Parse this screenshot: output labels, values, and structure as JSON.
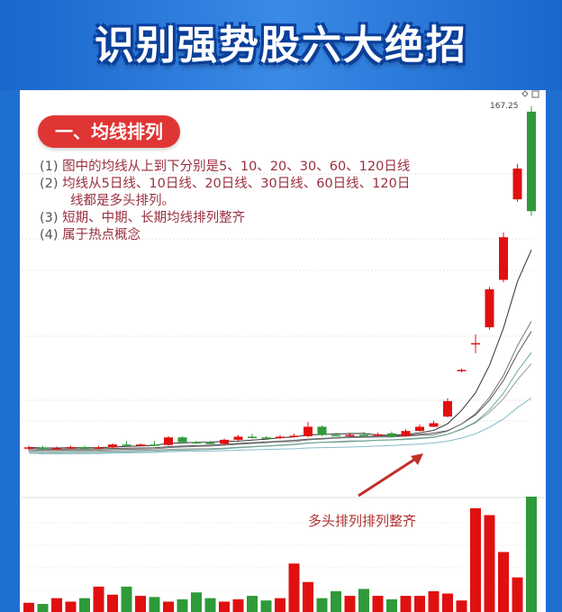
{
  "title": "识别强势股六大绝招",
  "section_label": "一、均线排列",
  "notes": [
    {
      "num": "(1)",
      "text": "图中的均线从上到下分别是5、10、20、30、60、120日线"
    },
    {
      "num": "(2)",
      "text": "均线从5日线、10日线、20日线、30日线、60日线、120日",
      "cont": "线都是多头排列。"
    },
    {
      "num": "(3)",
      "text": "短期、中期、长期均线排列整齐"
    },
    {
      "num": "(4)",
      "text": "属于热点概念"
    }
  ],
  "annotation": "多头排列排列整齐",
  "colors": {
    "up": "#e01010",
    "down": "#2e9a3a",
    "header": "#1f6fd0",
    "pill": "#e03535"
  },
  "chart_data": {
    "type": "candlestick",
    "price_label": "167.25",
    "ma_periods": [
      5,
      10,
      20,
      30,
      60,
      120
    ],
    "candles": [
      [
        23,
        23.3,
        24,
        22
      ],
      [
        23.3,
        22.8,
        24,
        22
      ],
      [
        22.8,
        23,
        23.6,
        22.3
      ],
      [
        23,
        23.4,
        24,
        22.5
      ],
      [
        23.4,
        23.1,
        24,
        22.6
      ],
      [
        23.1,
        23.3,
        24,
        22.8
      ],
      [
        23.3,
        24.5,
        25,
        23
      ],
      [
        24.5,
        24.2,
        26,
        23.8
      ],
      [
        24.2,
        24.5,
        25,
        23.8
      ],
      [
        24.5,
        24.3,
        26,
        23.8
      ],
      [
        24.3,
        27.5,
        28,
        24
      ],
      [
        27.5,
        25.5,
        28,
        25
      ],
      [
        25.5,
        25.2,
        26,
        24.8
      ],
      [
        25.2,
        24.8,
        26,
        24.5
      ],
      [
        24.8,
        26.5,
        27,
        24.5
      ],
      [
        26.5,
        27.8,
        28.5,
        26
      ],
      [
        27.8,
        27.5,
        29,
        27
      ],
      [
        27.5,
        27.2,
        28,
        26.8
      ],
      [
        27.2,
        27.8,
        28.5,
        26.8
      ],
      [
        27.8,
        28.2,
        29,
        27.5
      ],
      [
        28,
        32,
        34,
        27.5
      ],
      [
        32,
        28.5,
        32.5,
        28
      ],
      [
        28.5,
        28.3,
        29.5,
        28
      ],
      [
        28.3,
        28.6,
        29.5,
        28
      ],
      [
        28.6,
        28.4,
        29.8,
        28
      ],
      [
        28.4,
        28.8,
        29.5,
        28
      ],
      [
        29.2,
        27.8,
        30,
        27.5
      ],
      [
        28,
        30.2,
        31,
        27.8
      ],
      [
        30.2,
        32,
        33,
        30
      ],
      [
        32,
        33.5,
        34.5,
        31.8
      ],
      [
        36.3,
        42.8,
        44,
        36
      ],
      [
        55.5,
        56,
        56.5,
        55
      ],
      [
        67,
        67.3,
        71,
        63
      ],
      [
        74,
        90,
        91,
        73
      ],
      [
        94,
        112,
        114,
        93
      ],
      [
        128,
        141,
        143,
        127
      ],
      [
        165,
        123,
        167.25,
        121
      ]
    ],
    "volumes": [
      8,
      7,
      12,
      9,
      12,
      22,
      15,
      22,
      14,
      13,
      9,
      11,
      17,
      12,
      9,
      11,
      14,
      10,
      12,
      42,
      26,
      12,
      18,
      14,
      20,
      14,
      11,
      14,
      14,
      18,
      16,
      10,
      90,
      84,
      52,
      30,
      100
    ]
  }
}
